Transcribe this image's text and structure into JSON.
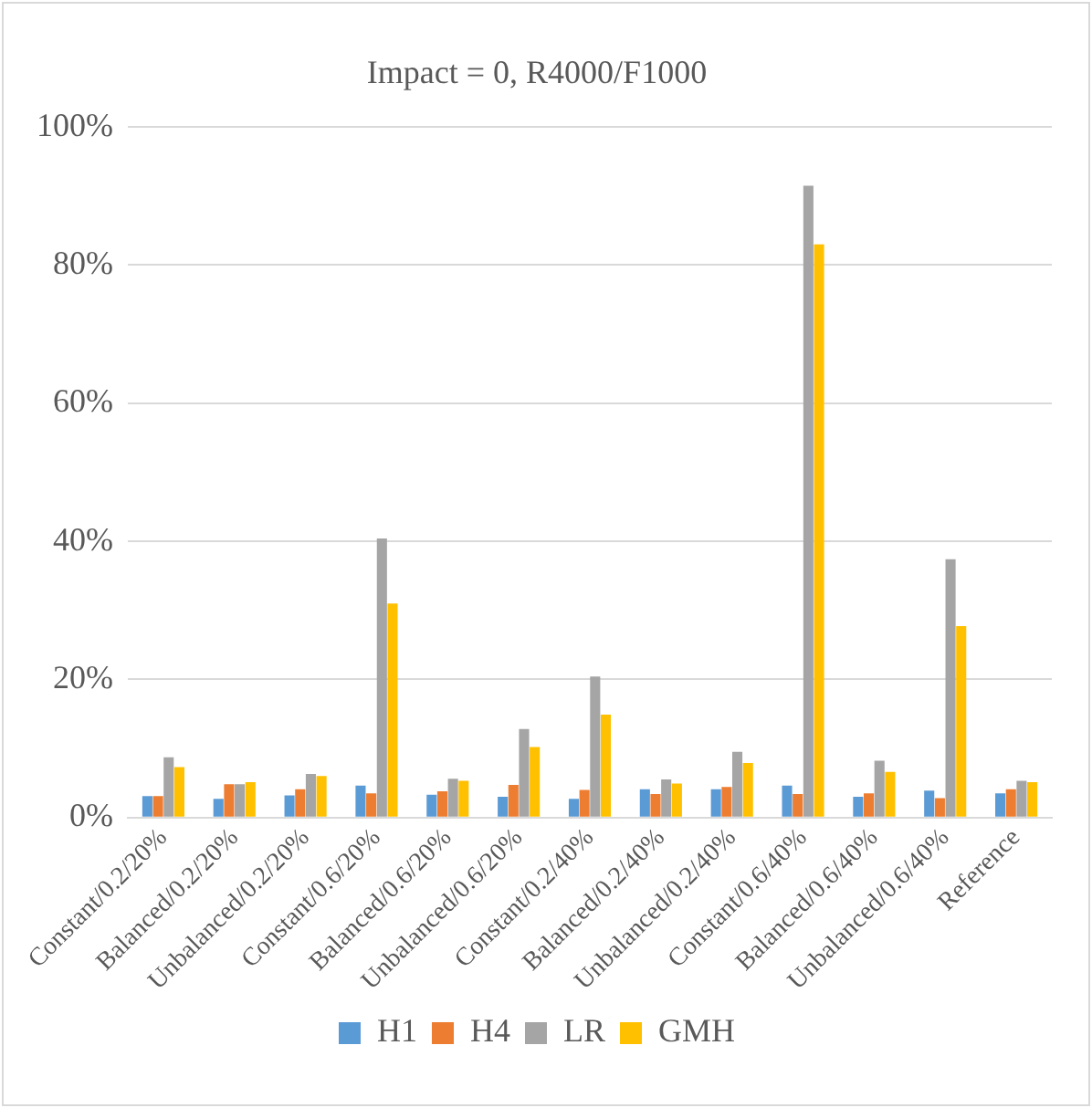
{
  "chart_data": {
    "type": "bar",
    "title": "Impact = 0, R4000/F1000",
    "categories": [
      "Constant/0.2/20%",
      "Balanced/0.2/20%",
      "Unbalanced/0.2/20%",
      "Constant/0.6/20%",
      "Balanced/0.6/20%",
      "Unbalanced/0.6/20%",
      "Constant/0.2/40%",
      "Balanced/0.2/40%",
      "Unbalanced/0.2/40%",
      "Constant/0.6/40%",
      "Balanced/0.6/40%",
      "Unbalanced/0.6/40%",
      "Reference"
    ],
    "series": [
      {
        "name": "H1",
        "color": "#5b9bd5",
        "values": [
          3.1,
          2.7,
          3.2,
          4.6,
          3.3,
          3.0,
          2.7,
          4.1,
          4.1,
          4.6,
          3.0,
          3.9,
          3.5
        ]
      },
      {
        "name": "H4",
        "color": "#ed7d31",
        "values": [
          3.1,
          4.8,
          4.1,
          3.5,
          3.8,
          4.7,
          4.0,
          3.4,
          4.4,
          3.4,
          3.5,
          2.8,
          4.1
        ]
      },
      {
        "name": "LR",
        "color": "#a5a5a5",
        "values": [
          8.7,
          4.8,
          6.3,
          40.4,
          5.6,
          12.8,
          20.4,
          5.5,
          9.5,
          91.5,
          8.2,
          37.4,
          5.3
        ]
      },
      {
        "name": "GMH",
        "color": "#ffc000",
        "values": [
          7.3,
          5.1,
          6.0,
          31.0,
          5.3,
          10.2,
          14.9,
          4.9,
          7.9,
          83.0,
          6.6,
          27.7,
          5.1
        ]
      }
    ],
    "ylim": [
      0,
      100
    ],
    "yticks": [
      {
        "value": 0,
        "label": "0%"
      },
      {
        "value": 20,
        "label": "20%"
      },
      {
        "value": 40,
        "label": "40%"
      },
      {
        "value": 60,
        "label": "60%"
      },
      {
        "value": 80,
        "label": "80%"
      },
      {
        "value": 100,
        "label": "100%"
      }
    ],
    "grid": "y",
    "legend": "bottom"
  }
}
